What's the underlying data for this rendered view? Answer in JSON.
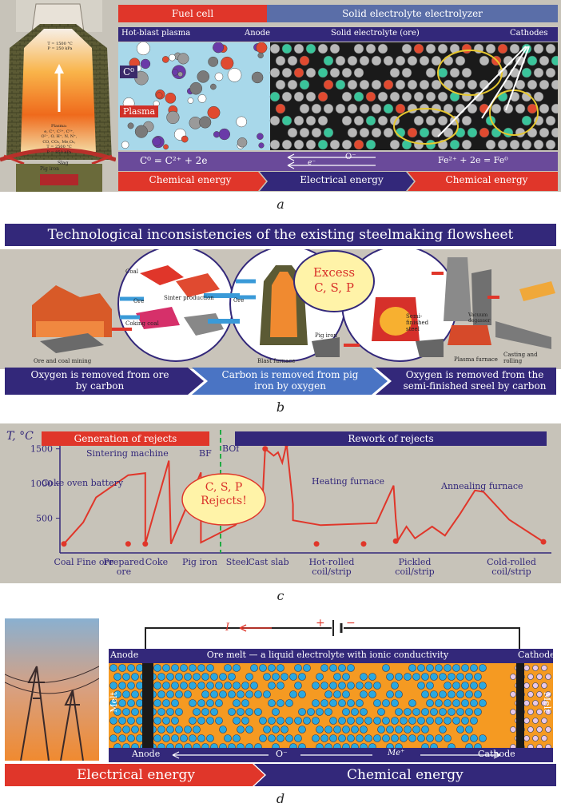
{
  "panel_a": {
    "furnace": {
      "temp": "T = 1500 °C",
      "pressure": "P = 250 kPa",
      "plasma_lines": [
        "Plasma:",
        "e, C⁺, C²⁺, C³⁺,",
        "O²⁻, O, H⁺, N, N⁺,",
        "CO, CO₂, Me,O₂,",
        "T = 2500 °C",
        "P = 850 kPa"
      ],
      "slag": "Slag",
      "pig_iron": "Pig iron"
    },
    "header_left": "Fuel cell",
    "header_right": "Solid electrolyte electrolyzer",
    "sub": {
      "hot_blast": "Hot-blast plasma",
      "anode": "Anode",
      "electrolyte": "Solid electrolyte (ore)",
      "cathodes": "Cathodes"
    },
    "c0": "C⁰",
    "plasma": "Plasma",
    "eq_left": "C⁰ = C²⁺ + 2e",
    "o_ion": "O⁻",
    "electron": "e⁻",
    "eq_right": "Fe²⁺ + 2e = Fe⁰",
    "energy": [
      "Chemical energy",
      "Electrical energy",
      "Chemical energy"
    ]
  },
  "caption_a": "a",
  "panel_b": {
    "title": "Technological inconsistencies of the existing steelmaking flowsheet",
    "labels": {
      "coal": "Coal",
      "ore": "Ore",
      "sinter": "Sinter production",
      "coking_coal": "Coking coal",
      "mining": "Ore and coal mining",
      "ore2": "Ore",
      "blast_furnace": "Blast furnace",
      "pig_iron": "Pig iron",
      "excess": "Excess",
      "csp": "C, S, P",
      "semi": "Semi-finished steel",
      "vacuum": "Vacuum degasser",
      "plasma_furnace": "Plasma furnace",
      "casting": "Casting and rolling"
    },
    "bottom": [
      "Oxygen is removed from ore by carbon",
      "Carbon is removed from pig iron by oxygen",
      "Oxygen is removed from the semi-finished sreel by carbon"
    ]
  },
  "caption_b": "b",
  "chart_data": {
    "type": "line",
    "title": "",
    "ylabel": "T, °C",
    "xlabel": "",
    "ylim": [
      0,
      1750
    ],
    "yticks": [
      500,
      1000,
      1500
    ],
    "categories": [
      "Coal",
      "Fine ore",
      "Prepared ore",
      "Coke",
      "Pig iron",
      "Steel",
      "Cast slab",
      "Hot-rolled coil/strip",
      "Pickled coil/strip",
      "Cold-rolled coil/strip"
    ],
    "banner_left": "Generation of rejects",
    "banner_right": "Rework of rejects",
    "bubble": [
      "C, S, P",
      "Rejects!"
    ],
    "annotations": [
      "Coke oven battery",
      "Sintering machine",
      "BF",
      "BOf",
      "Heating furnace",
      "Annealing furnace"
    ],
    "series": [
      {
        "values": [
          [
            0.0,
            130
          ],
          [
            0.45,
            440
          ],
          [
            0.75,
            800
          ],
          [
            1.5,
            1120
          ],
          [
            1.9,
            1150
          ],
          [
            1.9,
            130
          ],
          [
            2.45,
            1330
          ],
          [
            2.5,
            130
          ],
          [
            3.2,
            1160
          ],
          [
            3.2,
            150
          ],
          [
            4.0,
            400
          ],
          [
            4.4,
            650
          ],
          [
            4.65,
            900
          ],
          [
            4.7,
            1500
          ],
          [
            4.9,
            1400
          ],
          [
            5.0,
            1450
          ],
          [
            5.1,
            1300
          ],
          [
            5.2,
            1570
          ],
          [
            5.35,
            700
          ],
          [
            5.35,
            470
          ],
          [
            6.0,
            400
          ],
          [
            7.3,
            430
          ],
          [
            7.7,
            970
          ],
          [
            7.75,
            500
          ],
          [
            7.8,
            180
          ],
          [
            8.0,
            380
          ],
          [
            8.2,
            210
          ],
          [
            8.6,
            380
          ],
          [
            8.9,
            250
          ],
          [
            9.25,
            560
          ],
          [
            9.6,
            900
          ],
          [
            9.8,
            880
          ],
          [
            10.4,
            480
          ],
          [
            11.2,
            160
          ]
        ]
      }
    ],
    "markers": [
      [
        0.0,
        130
      ],
      [
        1.5,
        130
      ],
      [
        1.9,
        130
      ],
      [
        4.7,
        1500
      ],
      [
        5.2,
        1570
      ],
      [
        5.9,
        130
      ],
      [
        7.0,
        130
      ],
      [
        7.75,
        170
      ],
      [
        11.2,
        160
      ]
    ]
  },
  "caption_c": "c",
  "panel_d": {
    "current": "I",
    "plus": "+",
    "minus": "−",
    "anode": "Anode",
    "cathode": "Cathode",
    "header": "Ore melt — a liquid electrolyte with ionic conductivity",
    "melt_left": "Melt",
    "melt_right": "Melt",
    "anode_b": "Anode",
    "o_ion": "O⁻",
    "me_ion": "Me⁺",
    "cathode_b": "Cathode",
    "energy_left": "Electrical energy",
    "energy_right": "Chemical energy"
  },
  "caption_d": "d"
}
